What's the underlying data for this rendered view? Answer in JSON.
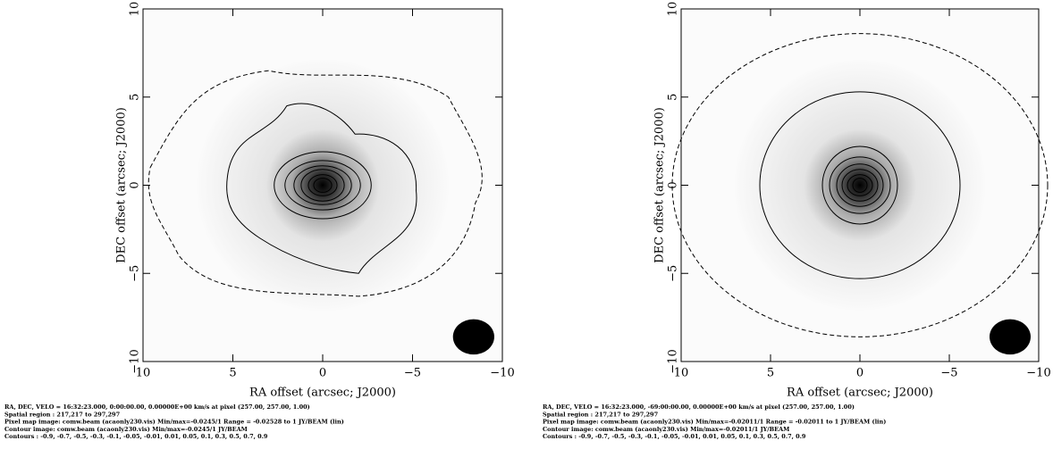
{
  "chart_data": [
    {
      "type": "image",
      "xlabel": "RA offset (arcsec; J2000)",
      "ylabel": "DEC offset (arcsec; J2000)",
      "xlim": [
        10,
        -10
      ],
      "ylim": [
        -10,
        10
      ],
      "xticks": [
        10,
        5,
        0,
        {
          "value": -5,
          "label": "−5"
        },
        {
          "value": -10,
          "label": "−10"
        }
      ],
      "yticks": [
        {
          "value": -10,
          "label": "−10"
        },
        {
          "value": -5,
          "label": "−5"
        },
        0,
        5,
        10
      ],
      "footer": [
        "RA, DEC, VELO = 16:32:23.000, 0:00:00.00, 0.00000E+00 km/s at pixel (257.00, 257.00, 1.00)",
        "Spatial region : 217,217 to 297,297",
        "Pixel map image: comw.beam (acaonly230.vis)  Min/max=-0.0245/1   Range = -0.02528 to 1 JY/BEAM (lin)",
        "Contour image: comw.beam (acaonly230.vis)  Min/max=-0.0245/1 JY/BEAM",
        "Contours : -0.9, -0.7, -0.5, -0.3, -0.1, -0.05, -0.01, 0.01, 0.05, 0.1, 0.3, 0.5, 0.7, 0.9"
      ]
    },
    {
      "type": "image",
      "xlabel": "RA offset (arcsec; J2000)",
      "ylabel": "DEC offset (arcsec; J2000)",
      "xlim": [
        10,
        -10
      ],
      "ylim": [
        -10,
        10
      ],
      "xticks": [
        10,
        5,
        0,
        {
          "value": -5,
          "label": "−5"
        },
        {
          "value": -10,
          "label": "−10"
        }
      ],
      "yticks": [
        {
          "value": -10,
          "label": "−10"
        },
        {
          "value": -5,
          "label": "−5"
        },
        0,
        5,
        10
      ],
      "footer": [
        "RA, DEC, VELO = 16:32:23.000, -69:00:00.00, 0.00000E+00 km/s at pixel (257.00, 257.00, 1.00)",
        "Spatial region : 217,217 to 297,297",
        "Pixel map image: comw.beam (acaonly230.vis)  Min/max=-0.02011/1   Range = -0.02011 to 1 JY/BEAM (lin)",
        "Contour image: comw.beam (acaonly230.vis)  Min/max=-0.02011/1 JY/BEAM",
        "Contours : -0.9, -0.7, -0.5, -0.3, -0.1, -0.05, -0.01, 0.01, 0.05, 0.1, 0.3, 0.5, 0.7, 0.9"
      ]
    }
  ]
}
